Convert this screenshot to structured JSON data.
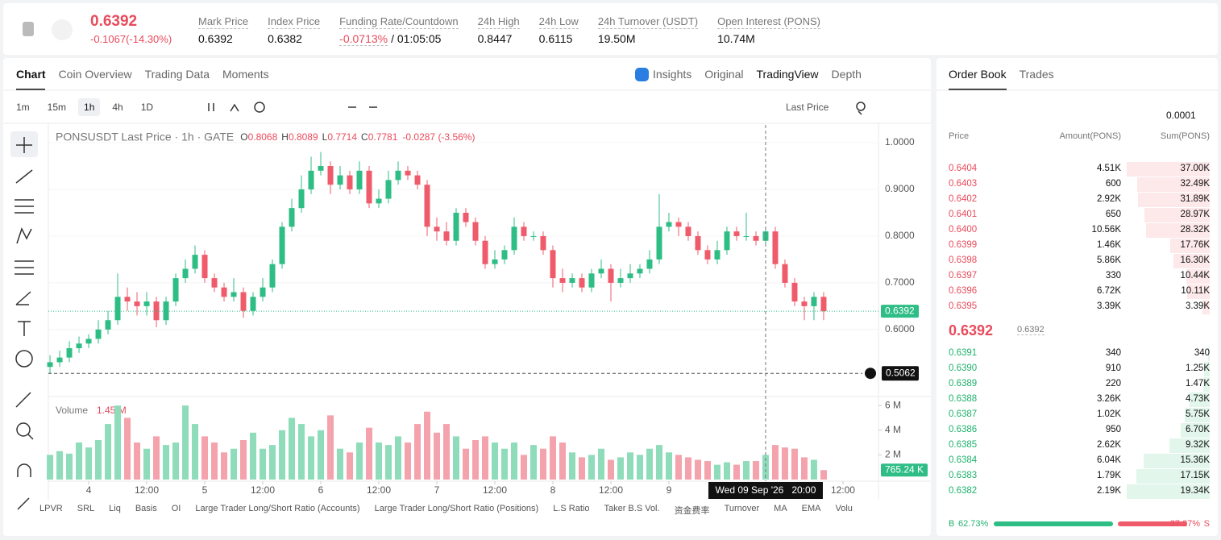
{
  "header": {
    "price": "0.6392",
    "change": "-0.1067(-14.30%)",
    "stats": [
      {
        "label": "Mark Price",
        "value": "0.6392"
      },
      {
        "label": "Index Price",
        "value": "0.6382"
      },
      {
        "label": "Funding Rate/Countdown",
        "value": "-0.0713%",
        "countdown": "/ 01:05:05"
      },
      {
        "label": "24h High",
        "value": "0.8447"
      },
      {
        "label": "24h Low",
        "value": "0.6115"
      },
      {
        "label": "24h Turnover (USDT)",
        "value": "19.50M"
      },
      {
        "label": "Open Interest (PONS)",
        "value": "10.74M"
      }
    ]
  },
  "tabs": [
    "Chart",
    "Coin Overview",
    "Trading Data",
    "Moments"
  ],
  "views": [
    "Insights",
    "Original",
    "TradingView",
    "Depth"
  ],
  "intervals": [
    "1m",
    "15m",
    "1h",
    "4h",
    "1D"
  ],
  "price_mode": "Last Price",
  "indicators": [
    "LPVR",
    "SRL",
    "Liq",
    "Basis",
    "OI",
    "Large Trader Long/Short Ratio (Accounts)",
    "Large Trader Long/Short Ratio (Positions)",
    "L.S Ratio",
    "Taker B.S Vol.",
    "资金费率",
    "Turnover",
    "MA",
    "EMA",
    "Volu"
  ],
  "chart_data": {
    "type": "candlestick",
    "title": "PONSUSDT Last Price · 1h · GATE",
    "legend": [
      {
        "key": "O",
        "value": "0.8068"
      },
      {
        "key": "H",
        "value": "0.8089"
      },
      {
        "key": "L",
        "value": "0.7714"
      },
      {
        "key": "C",
        "value": "0.7781"
      }
    ],
    "legend_change": "-0.0287 (-3.56%)",
    "up_color": "#2ebd85",
    "down_color": "#ef5b6b",
    "open": [
      0.52,
      0.53,
      0.54,
      0.56,
      0.57,
      0.58,
      0.6,
      0.62,
      0.67,
      0.66,
      0.65,
      0.66,
      0.62,
      0.66,
      0.71,
      0.73,
      0.76,
      0.71,
      0.69,
      0.67,
      0.68,
      0.64,
      0.67,
      0.69,
      0.74,
      0.82,
      0.86,
      0.9,
      0.94,
      0.95,
      0.91,
      0.93,
      0.9,
      0.94,
      0.87,
      0.88,
      0.92,
      0.94,
      0.93,
      0.91,
      0.82,
      0.81,
      0.79,
      0.85,
      0.83,
      0.79,
      0.74,
      0.75,
      0.77,
      0.82,
      0.8,
      0.8,
      0.77,
      0.71,
      0.7,
      0.71,
      0.69,
      0.72,
      0.73,
      0.7,
      0.71,
      0.72,
      0.73,
      0.75,
      0.82,
      0.83,
      0.82,
      0.8,
      0.77,
      0.75,
      0.77,
      0.81,
      0.8,
      0.8,
      0.79,
      0.81,
      0.74,
      0.7,
      0.66,
      0.65,
      0.67
    ],
    "close": [
      0.53,
      0.54,
      0.56,
      0.57,
      0.58,
      0.6,
      0.62,
      0.67,
      0.66,
      0.65,
      0.66,
      0.62,
      0.66,
      0.71,
      0.73,
      0.76,
      0.71,
      0.69,
      0.67,
      0.68,
      0.64,
      0.67,
      0.69,
      0.74,
      0.82,
      0.86,
      0.9,
      0.94,
      0.95,
      0.91,
      0.93,
      0.9,
      0.94,
      0.87,
      0.88,
      0.92,
      0.94,
      0.93,
      0.91,
      0.82,
      0.81,
      0.79,
      0.85,
      0.83,
      0.79,
      0.74,
      0.75,
      0.77,
      0.82,
      0.8,
      0.8,
      0.77,
      0.71,
      0.7,
      0.71,
      0.69,
      0.72,
      0.73,
      0.7,
      0.71,
      0.72,
      0.73,
      0.75,
      0.82,
      0.83,
      0.82,
      0.8,
      0.77,
      0.75,
      0.77,
      0.81,
      0.8,
      0.8,
      0.79,
      0.81,
      0.74,
      0.7,
      0.66,
      0.65,
      0.67,
      0.6392
    ],
    "high": [
      0.545,
      0.555,
      0.575,
      0.585,
      0.59,
      0.62,
      0.64,
      0.72,
      0.69,
      0.68,
      0.68,
      0.67,
      0.67,
      0.72,
      0.75,
      0.78,
      0.77,
      0.72,
      0.7,
      0.71,
      0.69,
      0.68,
      0.71,
      0.75,
      0.83,
      0.88,
      0.93,
      0.97,
      0.98,
      0.96,
      0.95,
      0.94,
      0.96,
      0.95,
      0.9,
      0.94,
      0.96,
      0.95,
      0.94,
      0.92,
      0.84,
      0.83,
      0.86,
      0.86,
      0.84,
      0.8,
      0.77,
      0.78,
      0.84,
      0.83,
      0.81,
      0.81,
      0.78,
      0.73,
      0.72,
      0.72,
      0.73,
      0.75,
      0.74,
      0.73,
      0.74,
      0.74,
      0.77,
      0.89,
      0.85,
      0.84,
      0.83,
      0.81,
      0.78,
      0.79,
      0.82,
      0.82,
      0.85,
      0.81,
      0.82,
      0.82,
      0.75,
      0.71,
      0.67,
      0.68,
      0.68
    ],
    "low": [
      0.505,
      0.52,
      0.53,
      0.55,
      0.56,
      0.57,
      0.59,
      0.61,
      0.64,
      0.63,
      0.63,
      0.605,
      0.61,
      0.65,
      0.7,
      0.72,
      0.7,
      0.68,
      0.66,
      0.66,
      0.625,
      0.63,
      0.66,
      0.68,
      0.73,
      0.81,
      0.85,
      0.89,
      0.93,
      0.89,
      0.9,
      0.89,
      0.89,
      0.86,
      0.86,
      0.87,
      0.91,
      0.92,
      0.9,
      0.8,
      0.79,
      0.78,
      0.78,
      0.82,
      0.78,
      0.73,
      0.73,
      0.74,
      0.76,
      0.79,
      0.79,
      0.76,
      0.69,
      0.68,
      0.69,
      0.68,
      0.68,
      0.71,
      0.66,
      0.69,
      0.7,
      0.71,
      0.72,
      0.74,
      0.81,
      0.8,
      0.79,
      0.76,
      0.74,
      0.74,
      0.76,
      0.79,
      0.79,
      0.78,
      0.78,
      0.73,
      0.69,
      0.65,
      0.62,
      0.62,
      0.62
    ],
    "xlim": [
      -0.17,
      85.67
    ],
    "xticks": [
      {
        "value": 4,
        "label": "4"
      },
      {
        "value": 10,
        "label": "12:00"
      },
      {
        "value": 16,
        "label": "5"
      },
      {
        "value": 22,
        "label": "12:00"
      },
      {
        "value": 28,
        "label": "6"
      },
      {
        "value": 34,
        "label": "12:00"
      },
      {
        "value": 40,
        "label": "7"
      },
      {
        "value": 46,
        "label": "12:00"
      },
      {
        "value": 52,
        "label": "8"
      },
      {
        "value": 58,
        "label": "12:00"
      },
      {
        "value": 64,
        "label": "9"
      },
      {
        "value": 82,
        "label": "12:00"
      }
    ],
    "ylim": [
      0.46,
      1.038
    ],
    "yticks": [
      {
        "value": 1,
        "label": "1.0000"
      },
      {
        "value": 0.9,
        "label": "0.9000"
      },
      {
        "value": 0.8,
        "label": "0.8000"
      },
      {
        "value": 0.7,
        "label": "0.7000"
      },
      {
        "value": 0.6,
        "label": "0.6000"
      }
    ],
    "last_price": {
      "value": 0.6392,
      "label": "0.6392"
    },
    "crosshair": {
      "price": {
        "value": 0.5062,
        "label": "0.5062"
      },
      "index": 74,
      "time_label": "Wed 09 Sep '26   20:00"
    },
    "volume": {
      "title": "Volume",
      "current": "1.45 M",
      "ylim": [
        0,
        6.53
      ],
      "yticks": [
        {
          "value": 6,
          "label": "6 M"
        },
        {
          "value": 4,
          "label": "4 M"
        },
        {
          "value": 2,
          "label": "2 M"
        }
      ],
      "values": [
        2.0,
        2.3,
        2.1,
        3.0,
        2.6,
        3.2,
        4.5,
        6.0,
        5.0,
        3.0,
        2.5,
        3.5,
        2.8,
        3.0,
        6.0,
        4.5,
        3.5,
        3.0,
        2.2,
        2.5,
        3.2,
        3.8,
        2.5,
        2.8,
        4.0,
        5.0,
        4.5,
        3.5,
        4.0,
        5.2,
        2.5,
        2.2,
        3.0,
        4.2,
        3.0,
        2.8,
        3.5,
        3.0,
        4.5,
        5.5,
        3.8,
        4.5,
        3.5,
        2.5,
        3.2,
        3.5,
        3.0,
        2.5,
        3.0,
        2.0,
        2.8,
        2.5,
        3.5,
        3.0,
        2.2,
        1.8,
        2.0,
        2.5,
        1.6,
        1.8,
        2.2,
        2.0,
        2.5,
        2.8,
        2.2,
        2.0,
        1.8,
        1.6,
        1.5,
        1.2,
        1.4,
        1.2,
        1.5,
        1.5,
        2.0,
        2.8,
        2.6,
        2.5,
        1.8,
        1.6,
        0.76524
      ],
      "last": {
        "value": 0.76524,
        "label": "765.24 K"
      }
    }
  },
  "order_book": {
    "tabs": [
      "Order Book",
      "Trades"
    ],
    "precision": "0.0001",
    "columns": [
      "Price",
      "Amount(PONS)",
      "Sum(PONS)"
    ],
    "asks": [
      {
        "price": "0.6404",
        "amount": "4.51K",
        "sum": {
          "value": 37000,
          "label": "37.00K"
        }
      },
      {
        "price": "0.6403",
        "amount": "600",
        "sum": {
          "value": 32490,
          "label": "32.49K"
        }
      },
      {
        "price": "0.6402",
        "amount": "2.92K",
        "sum": {
          "value": 31890,
          "label": "31.89K"
        }
      },
      {
        "price": "0.6401",
        "amount": "650",
        "sum": {
          "value": 28970,
          "label": "28.97K"
        }
      },
      {
        "price": "0.6400",
        "amount": "10.56K",
        "sum": {
          "value": 28320,
          "label": "28.32K"
        }
      },
      {
        "price": "0.6399",
        "amount": "1.46K",
        "sum": {
          "value": 17760,
          "label": "17.76K"
        }
      },
      {
        "price": "0.6398",
        "amount": "5.86K",
        "sum": {
          "value": 16300,
          "label": "16.30K"
        }
      },
      {
        "price": "0.6397",
        "amount": "330",
        "sum": {
          "value": 10440,
          "label": "10.44K"
        }
      },
      {
        "price": "0.6396",
        "amount": "6.72K",
        "sum": {
          "value": 10110,
          "label": "10.11K"
        }
      },
      {
        "price": "0.6395",
        "amount": "3.39K",
        "sum": {
          "value": 3390,
          "label": "3.39K"
        }
      }
    ],
    "mid": "0.6392",
    "mark": "0.6392",
    "bids": [
      {
        "price": "0.6391",
        "amount": "340",
        "sum": {
          "value": 340,
          "label": "340"
        }
      },
      {
        "price": "0.6390",
        "amount": "910",
        "sum": {
          "value": 1250,
          "label": "1.25K"
        }
      },
      {
        "price": "0.6389",
        "amount": "220",
        "sum": {
          "value": 1470,
          "label": "1.47K"
        }
      },
      {
        "price": "0.6388",
        "amount": "3.26K",
        "sum": {
          "value": 4730,
          "label": "4.73K"
        }
      },
      {
        "price": "0.6387",
        "amount": "1.02K",
        "sum": {
          "value": 5750,
          "label": "5.75K"
        }
      },
      {
        "price": "0.6386",
        "amount": "950",
        "sum": {
          "value": 6700,
          "label": "6.70K"
        }
      },
      {
        "price": "0.6385",
        "amount": "2.62K",
        "sum": {
          "value": 9320,
          "label": "9.32K"
        }
      },
      {
        "price": "0.6384",
        "amount": "6.04K",
        "sum": {
          "value": 15360,
          "label": "15.36K"
        }
      },
      {
        "price": "0.6383",
        "amount": "1.79K",
        "sum": {
          "value": 17150,
          "label": "17.15K"
        }
      },
      {
        "price": "0.6382",
        "amount": "2.19K",
        "sum": {
          "value": 19340,
          "label": "19.34K"
        }
      }
    ],
    "ratio": {
      "buy_key": "B",
      "buy": 62.73,
      "buy_label": "62.73%",
      "sell_key": "S",
      "sell": 37.27,
      "sell_label": "37.27%"
    }
  }
}
